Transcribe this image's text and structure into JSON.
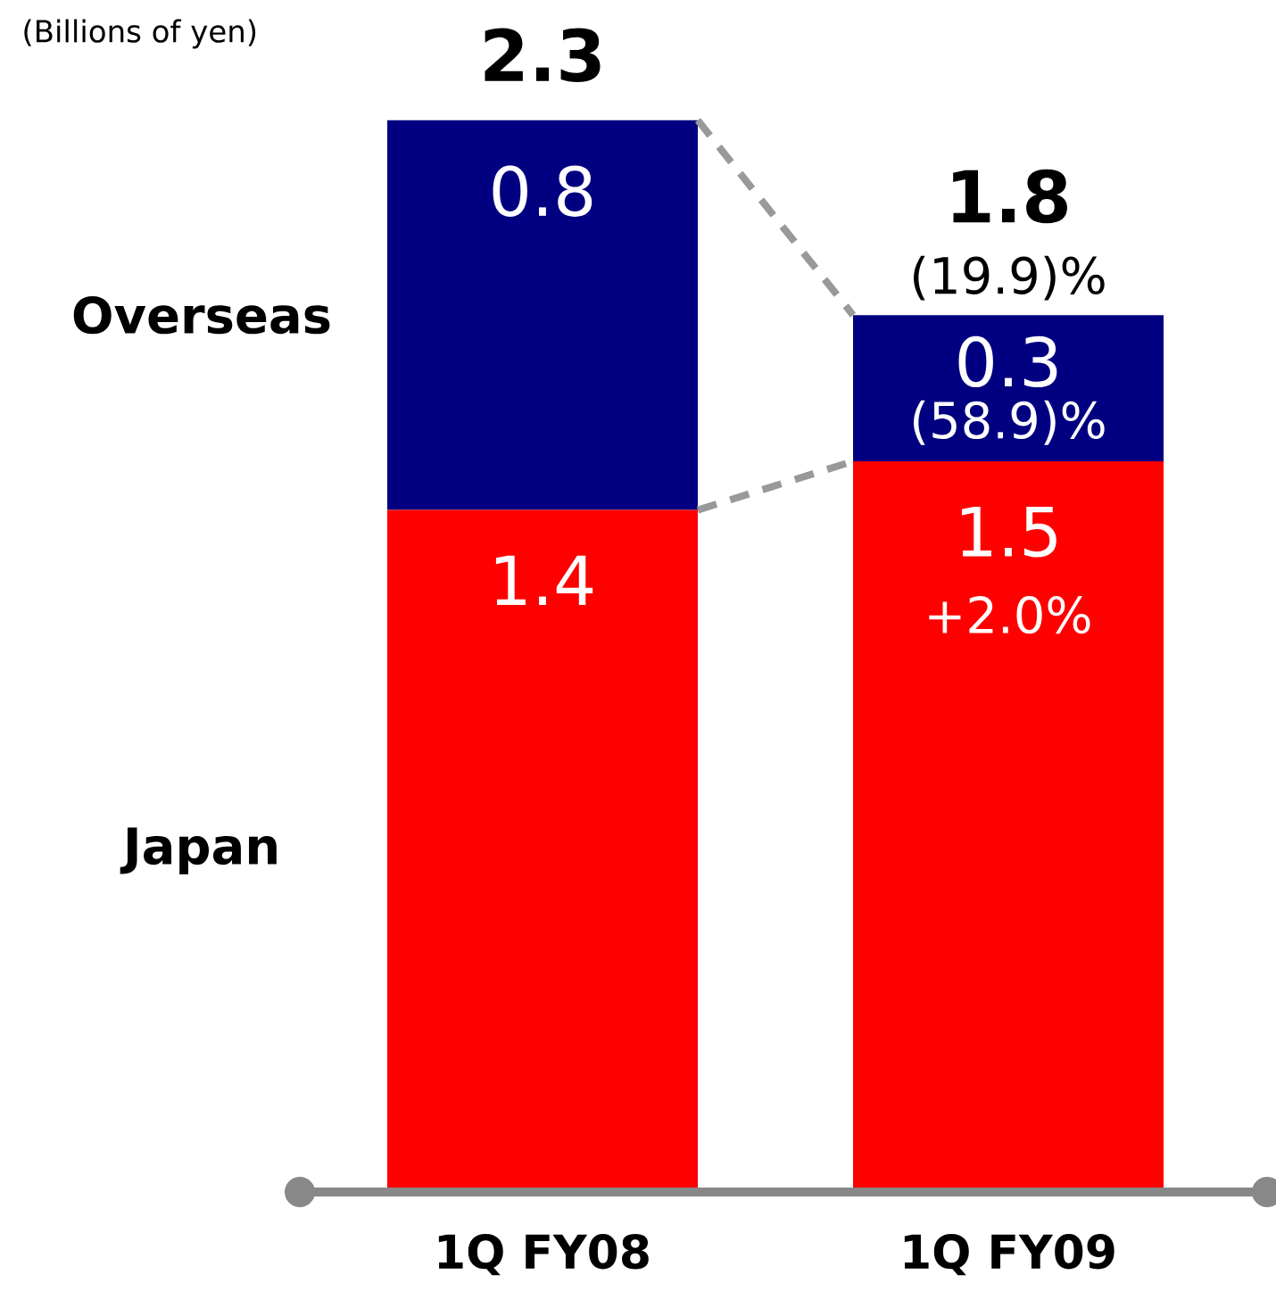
{
  "chart_data": {
    "type": "bar",
    "stacked": true,
    "ylabel": "(Billions of yen)",
    "categories": [
      "1Q FY08",
      "1Q FY09"
    ],
    "series": [
      {
        "name": "Japan",
        "color": "#ff0000",
        "values": [
          1.4,
          1.5
        ]
      },
      {
        "name": "Overseas",
        "color": "#000080",
        "values": [
          0.8,
          0.3
        ]
      }
    ],
    "data_labels": true,
    "totals": [
      "2.3",
      "1.8"
    ],
    "annotations": [
      {
        "text": "(19.9)%",
        "x": "1Q FY09",
        "y": 1.8
      },
      {
        "text": "(58.9)%",
        "x": "1Q FY09",
        "y": 1.8
      },
      {
        "text": "+2.0%",
        "x": "1Q FY09",
        "y": 1.5
      }
    ]
  }
}
